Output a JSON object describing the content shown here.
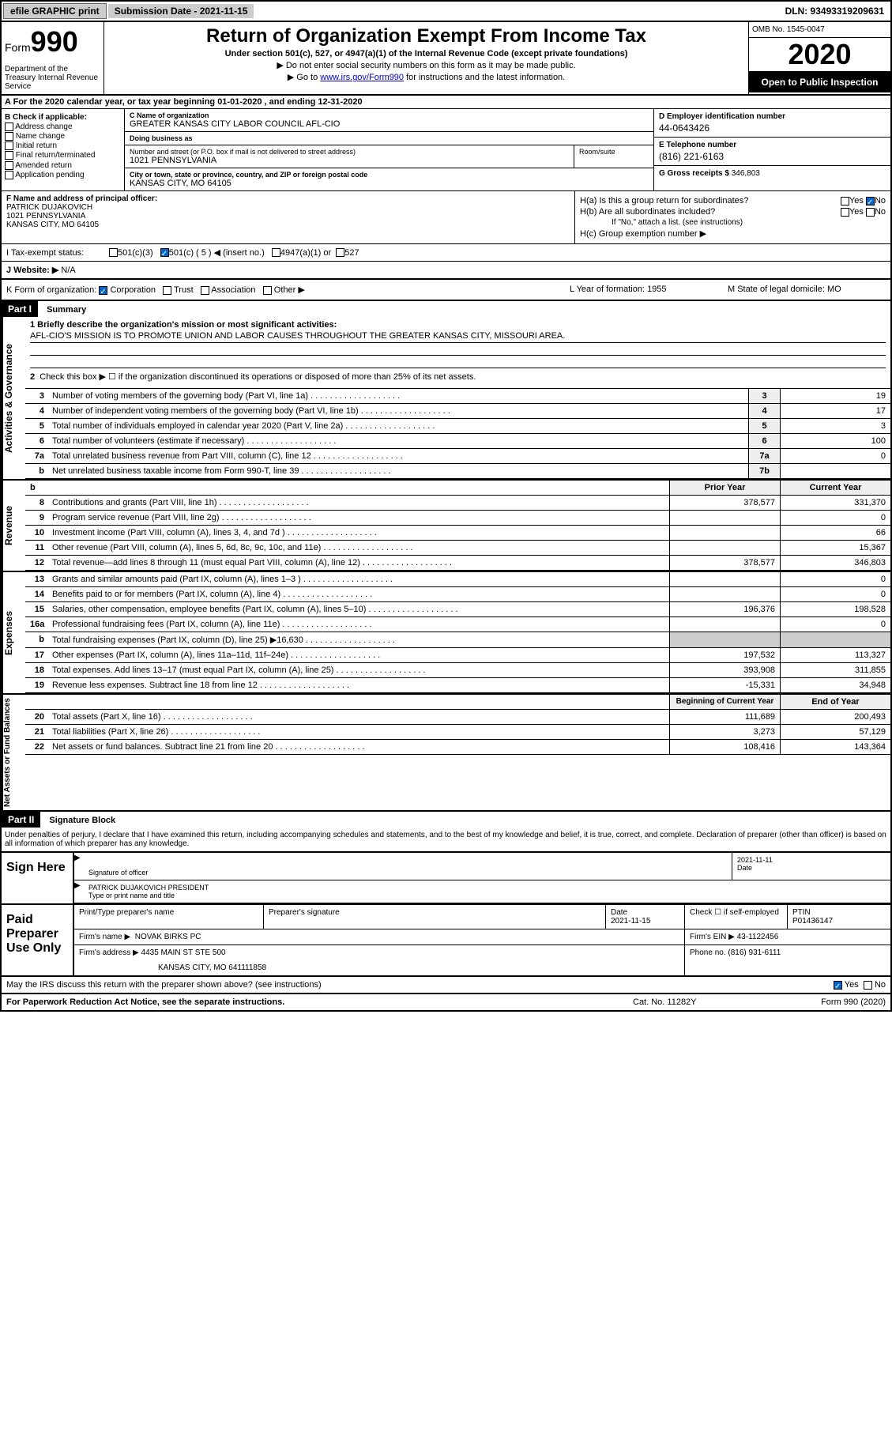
{
  "top_bar": {
    "efile": "efile GRAPHIC print",
    "submission_label": "Submission Date - 2021-11-15",
    "dln": "DLN: 93493319209631"
  },
  "header": {
    "form_label": "Form",
    "form_number": "990",
    "dept": "Department of the Treasury Internal Revenue Service",
    "title": "Return of Organization Exempt From Income Tax",
    "subtitle": "Under section 501(c), 527, or 4947(a)(1) of the Internal Revenue Code (except private foundations)",
    "note1": "▶ Do not enter social security numbers on this form as it may be made public.",
    "note2_pre": "▶ Go to ",
    "note2_link": "www.irs.gov/Form990",
    "note2_post": " for instructions and the latest information.",
    "omb": "OMB No. 1545-0047",
    "year": "2020",
    "public": "Open to Public Inspection"
  },
  "section_a": "A For the 2020 calendar year, or tax year beginning 01-01-2020   , and ending 12-31-2020",
  "section_b": {
    "label": "B Check if applicable:",
    "items": [
      "Address change",
      "Name change",
      "Initial return",
      "Final return/terminated",
      "Amended return",
      "Application pending"
    ]
  },
  "section_c": {
    "name_label": "C Name of organization",
    "name": "GREATER KANSAS CITY LABOR COUNCIL AFL-CIO",
    "dba_label": "Doing business as",
    "dba": "",
    "addr_label": "Number and street (or P.O. box if mail is not delivered to street address)",
    "addr": "1021 PENNSYLVANIA",
    "room_label": "Room/suite",
    "city_label": "City or town, state or province, country, and ZIP or foreign postal code",
    "city": "KANSAS CITY, MO  64105"
  },
  "section_d": {
    "ein_label": "D Employer identification number",
    "ein": "44-0643426",
    "phone_label": "E Telephone number",
    "phone": "(816) 221-6163",
    "gross_label": "G Gross receipts $",
    "gross": "346,803"
  },
  "section_f": {
    "label": "F Name and address of principal officer:",
    "name": "PATRICK DUJAKOVICH",
    "addr": "1021 PENNSYLVANIA",
    "city": "KANSAS CITY, MO  64105"
  },
  "section_h": {
    "ha": "H(a)  Is this a group return for subordinates?",
    "ha_yes": "Yes",
    "ha_no": "No",
    "hb": "H(b)  Are all subordinates included?",
    "hb_yes": "Yes",
    "hb_no": "No",
    "hb_note": "If \"No,\" attach a list. (see instructions)",
    "hc": "H(c)  Group exemption number ▶"
  },
  "tax_status": {
    "label": "I  Tax-exempt status:",
    "c3": "501(c)(3)",
    "c5": "501(c) ( 5 ) ◀ (insert no.)",
    "s4947": "4947(a)(1) or",
    "s527": "527"
  },
  "website": {
    "label": "J  Website: ▶",
    "value": "N/A"
  },
  "section_k": {
    "label": "K Form of organization:",
    "corp": "Corporation",
    "trust": "Trust",
    "assoc": "Association",
    "other": "Other ▶",
    "year_label": "L Year of formation:",
    "year": "1955",
    "state_label": "M State of legal domicile:",
    "state": "MO"
  },
  "part1": {
    "header": "Part I",
    "title": "Summary",
    "line1_label": "1 Briefly describe the organization's mission or most significant activities:",
    "line1_text": "AFL-CIO'S MISSION IS TO PROMOTE UNION AND LABOR CAUSES THROUGHOUT THE GREATER KANSAS CITY, MISSOURI AREA.",
    "line2": "Check this box ▶ ☐  if the organization discontinued its operations or disposed of more than 25% of its net assets.",
    "lines_gov": [
      {
        "n": "3",
        "t": "Number of voting members of the governing body (Part VI, line 1a)",
        "box": "3",
        "v": "19"
      },
      {
        "n": "4",
        "t": "Number of independent voting members of the governing body (Part VI, line 1b)",
        "box": "4",
        "v": "17"
      },
      {
        "n": "5",
        "t": "Total number of individuals employed in calendar year 2020 (Part V, line 2a)",
        "box": "5",
        "v": "3"
      },
      {
        "n": "6",
        "t": "Total number of volunteers (estimate if necessary)",
        "box": "6",
        "v": "100"
      },
      {
        "n": "7a",
        "t": "Total unrelated business revenue from Part VIII, column (C), line 12",
        "box": "7a",
        "v": "0"
      },
      {
        "n": "b",
        "t": "Net unrelated business taxable income from Form 990-T, line 39",
        "box": "7b",
        "v": ""
      }
    ],
    "prior_year": "Prior Year",
    "current_year": "Current Year",
    "revenue_lines": [
      {
        "n": "8",
        "t": "Contributions and grants (Part VIII, line 1h)",
        "py": "378,577",
        "cy": "331,370"
      },
      {
        "n": "9",
        "t": "Program service revenue (Part VIII, line 2g)",
        "py": "",
        "cy": "0"
      },
      {
        "n": "10",
        "t": "Investment income (Part VIII, column (A), lines 3, 4, and 7d )",
        "py": "",
        "cy": "66"
      },
      {
        "n": "11",
        "t": "Other revenue (Part VIII, column (A), lines 5, 6d, 8c, 9c, 10c, and 11e)",
        "py": "",
        "cy": "15,367"
      },
      {
        "n": "12",
        "t": "Total revenue—add lines 8 through 11 (must equal Part VIII, column (A), line 12)",
        "py": "378,577",
        "cy": "346,803"
      }
    ],
    "expense_lines": [
      {
        "n": "13",
        "t": "Grants and similar amounts paid (Part IX, column (A), lines 1–3 )",
        "py": "",
        "cy": "0"
      },
      {
        "n": "14",
        "t": "Benefits paid to or for members (Part IX, column (A), line 4)",
        "py": "",
        "cy": "0"
      },
      {
        "n": "15",
        "t": "Salaries, other compensation, employee benefits (Part IX, column (A), lines 5–10)",
        "py": "196,376",
        "cy": "198,528"
      },
      {
        "n": "16a",
        "t": "Professional fundraising fees (Part IX, column (A), line 11e)",
        "py": "",
        "cy": "0"
      },
      {
        "n": "b",
        "t": "Total fundraising expenses (Part IX, column (D), line 25) ▶16,630",
        "py": "—",
        "cy": "—"
      },
      {
        "n": "17",
        "t": "Other expenses (Part IX, column (A), lines 11a–11d, 11f–24e)",
        "py": "197,532",
        "cy": "113,327"
      },
      {
        "n": "18",
        "t": "Total expenses. Add lines 13–17 (must equal Part IX, column (A), line 25)",
        "py": "393,908",
        "cy": "311,855"
      },
      {
        "n": "19",
        "t": "Revenue less expenses. Subtract line 18 from line 12",
        "py": "-15,331",
        "cy": "34,948"
      }
    ],
    "begin_year": "Beginning of Current Year",
    "end_year": "End of Year",
    "net_lines": [
      {
        "n": "20",
        "t": "Total assets (Part X, line 16)",
        "py": "111,689",
        "cy": "200,493"
      },
      {
        "n": "21",
        "t": "Total liabilities (Part X, line 26)",
        "py": "3,273",
        "cy": "57,129"
      },
      {
        "n": "22",
        "t": "Net assets or fund balances. Subtract line 21 from line 20",
        "py": "108,416",
        "cy": "143,364"
      }
    ],
    "side_gov": "Activities & Governance",
    "side_rev": "Revenue",
    "side_exp": "Expenses",
    "side_net": "Net Assets or Fund Balances"
  },
  "part2": {
    "header": "Part II",
    "title": "Signature Block",
    "declaration": "Under penalties of perjury, I declare that I have examined this return, including accompanying schedules and statements, and to the best of my knowledge and belief, it is true, correct, and complete. Declaration of preparer (other than officer) is based on all information of which preparer has any knowledge.",
    "sign_here": "Sign Here",
    "sig_officer": "Signature of officer",
    "sig_date": "2021-11-11",
    "date_label": "Date",
    "officer_name": "PATRICK DUJAKOVICH  PRESIDENT",
    "name_label": "Type or print name and title",
    "paid_prep": "Paid Preparer Use Only",
    "prep_name_label": "Print/Type preparer's name",
    "prep_sig_label": "Preparer's signature",
    "prep_date_label": "Date",
    "prep_date": "2021-11-15",
    "self_emp": "Check ☐ if self-employed",
    "ptin_label": "PTIN",
    "ptin": "P01436147",
    "firm_name_label": "Firm's name    ▶",
    "firm_name": "NOVAK BIRKS PC",
    "firm_ein_label": "Firm's EIN ▶",
    "firm_ein": "43-1122456",
    "firm_addr_label": "Firm's address ▶",
    "firm_addr": "4435 MAIN ST STE 500",
    "firm_city": "KANSAS CITY, MO  641111858",
    "firm_phone_label": "Phone no.",
    "firm_phone": "(816) 931-6111",
    "discuss": "May the IRS discuss this return with the preparer shown above? (see instructions)",
    "discuss_yes": "Yes",
    "discuss_no": "No"
  },
  "footer": {
    "left": "For Paperwork Reduction Act Notice, see the separate instructions.",
    "mid": "Cat. No. 11282Y",
    "right": "Form 990 (2020)"
  }
}
